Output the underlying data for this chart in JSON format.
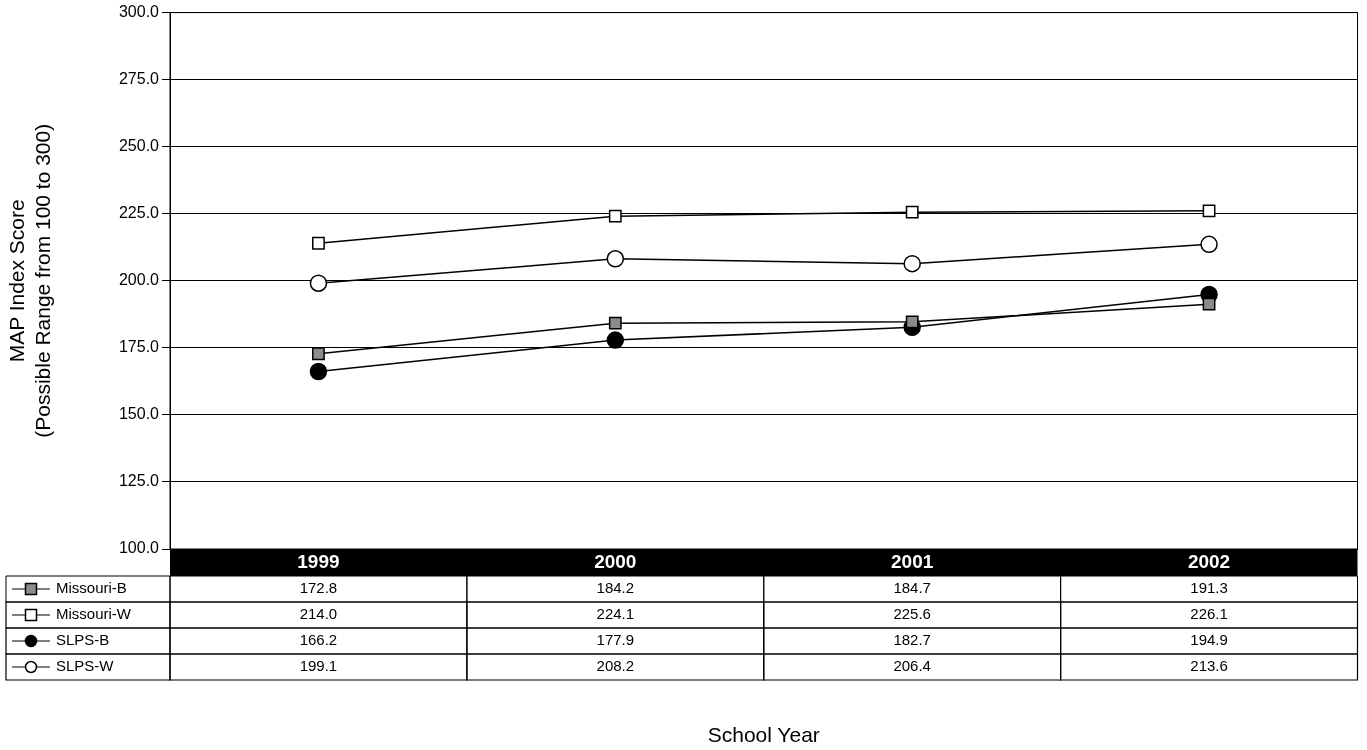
{
  "chart_data": {
    "type": "line",
    "ylabel": "MAP Index Score\n(Possible Range from 100 to 300)",
    "annotations": [
      "School Year"
    ],
    "categories": [
      "1999",
      "2000",
      "2001",
      "2002"
    ],
    "series": [
      {
        "name": "Missouri-B",
        "color": "#8c8c8c",
        "marker": "square",
        "values": [
          172.8,
          184.2,
          184.7,
          191.3
        ],
        "value_labels": [
          "172.8",
          "184.2",
          "184.7",
          "191.3"
        ]
      },
      {
        "name": "Missouri-W",
        "color": "#ffffff",
        "marker": "square",
        "values": [
          214.0,
          224.1,
          225.6,
          226.1
        ],
        "value_labels": [
          "214.0",
          "224.1",
          "225.6",
          "226.1"
        ]
      },
      {
        "name": "SLPS-B",
        "color": "#000000",
        "marker": "circle",
        "values": [
          166.2,
          177.9,
          182.7,
          194.9
        ],
        "value_labels": [
          "166.2",
          "177.9",
          "182.7",
          "194.9"
        ]
      },
      {
        "name": "SLPS-W",
        "color": "#ffffff",
        "marker": "circle",
        "values": [
          199.1,
          208.2,
          206.4,
          213.6
        ],
        "value_labels": [
          "199.1",
          "208.2",
          "206.4",
          "213.6"
        ]
      }
    ],
    "ylim": [
      100,
      300
    ],
    "yticks": [
      {
        "value": 100,
        "label": "100.0"
      },
      {
        "value": 125,
        "label": "125.0"
      },
      {
        "value": 150,
        "label": "150.0"
      },
      {
        "value": 175,
        "label": "175.0"
      },
      {
        "value": 200,
        "label": "200.0"
      },
      {
        "value": 225,
        "label": "225.0"
      },
      {
        "value": 250,
        "label": "250.0"
      },
      {
        "value": 275,
        "label": "275.0"
      },
      {
        "value": 300,
        "label": "300.0"
      }
    ],
    "grid": "y",
    "legend": "bottom",
    "line_style": "solid"
  }
}
